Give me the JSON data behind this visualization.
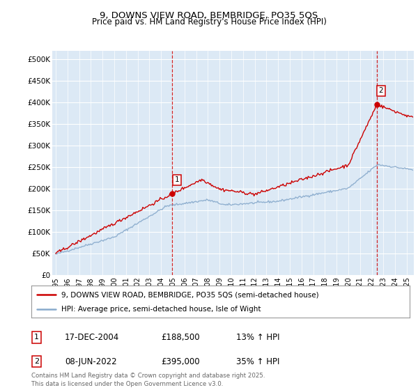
{
  "title": "9, DOWNS VIEW ROAD, BEMBRIDGE, PO35 5QS",
  "subtitle": "Price paid vs. HM Land Registry's House Price Index (HPI)",
  "ylim": [
    0,
    520000
  ],
  "xlim_start": 1994.7,
  "xlim_end": 2025.6,
  "background_color": "#dce9f5",
  "plot_bg_color": "#dce9f5",
  "line1_color": "#cc0000",
  "line2_color": "#88aacc",
  "vline_color": "#cc0000",
  "grid_color": "#ffffff",
  "transaction1_x": 2004.96,
  "transaction1_y": 188500,
  "transaction2_x": 2022.44,
  "transaction2_y": 395000,
  "legend_line1": "9, DOWNS VIEW ROAD, BEMBRIDGE, PO35 5QS (semi-detached house)",
  "legend_line2": "HPI: Average price, semi-detached house, Isle of Wight",
  "annotation1_date": "17-DEC-2004",
  "annotation1_price": "£188,500",
  "annotation1_hpi": "13% ↑ HPI",
  "annotation2_date": "08-JUN-2022",
  "annotation2_price": "£395,000",
  "annotation2_hpi": "35% ↑ HPI",
  "footer": "Contains HM Land Registry data © Crown copyright and database right 2025.\nThis data is licensed under the Open Government Licence v3.0."
}
